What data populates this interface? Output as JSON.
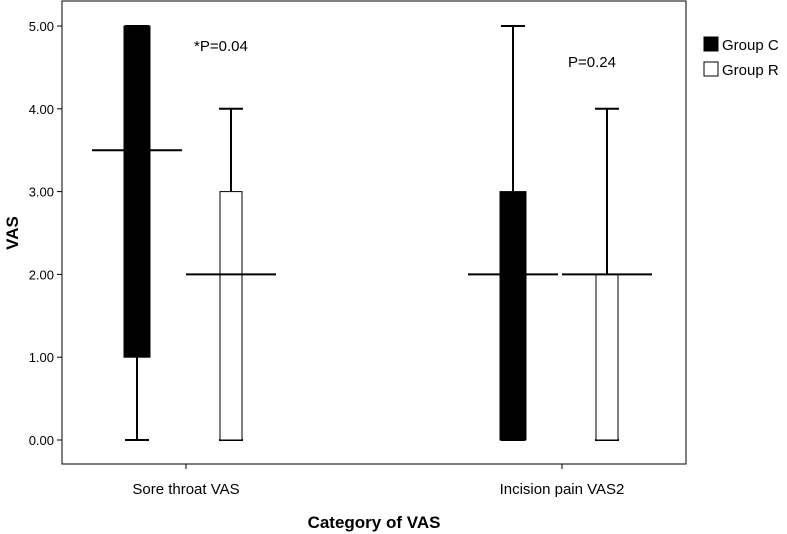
{
  "chart_data": {
    "type": "boxplot",
    "title": "",
    "xlabel": "Category of  VAS",
    "ylabel": "VAS",
    "ylim": [
      0,
      5.2
    ],
    "yticks": [
      0,
      1,
      2,
      3,
      4,
      5
    ],
    "ytick_labels": [
      "0.00",
      "1.00",
      "2.00",
      "3.00",
      "4.00",
      "5.00"
    ],
    "grid": false,
    "legend_position": "top-right",
    "categories": [
      "Sore throat VAS",
      "Incision pain VAS2"
    ],
    "series": [
      {
        "name": "Group C",
        "color": "#000000",
        "boxes": [
          {
            "min": 0,
            "q1": 1,
            "median": 3.5,
            "q3": 5,
            "max": 5
          },
          {
            "min": 0,
            "q1": 0,
            "median": 2,
            "q3": 3,
            "max": 5
          }
        ]
      },
      {
        "name": "Group R",
        "color": "#ffffff",
        "boxes": [
          {
            "min": 0,
            "q1": 0,
            "median": 2,
            "q3": 3,
            "max": 4
          },
          {
            "min": 0,
            "q1": 0,
            "median": 2,
            "q3": 2,
            "max": 4
          }
        ]
      }
    ],
    "annotations": [
      {
        "text": "*P=0.04",
        "category": 0
      },
      {
        "text": "P=0.24",
        "category": 1
      }
    ]
  }
}
